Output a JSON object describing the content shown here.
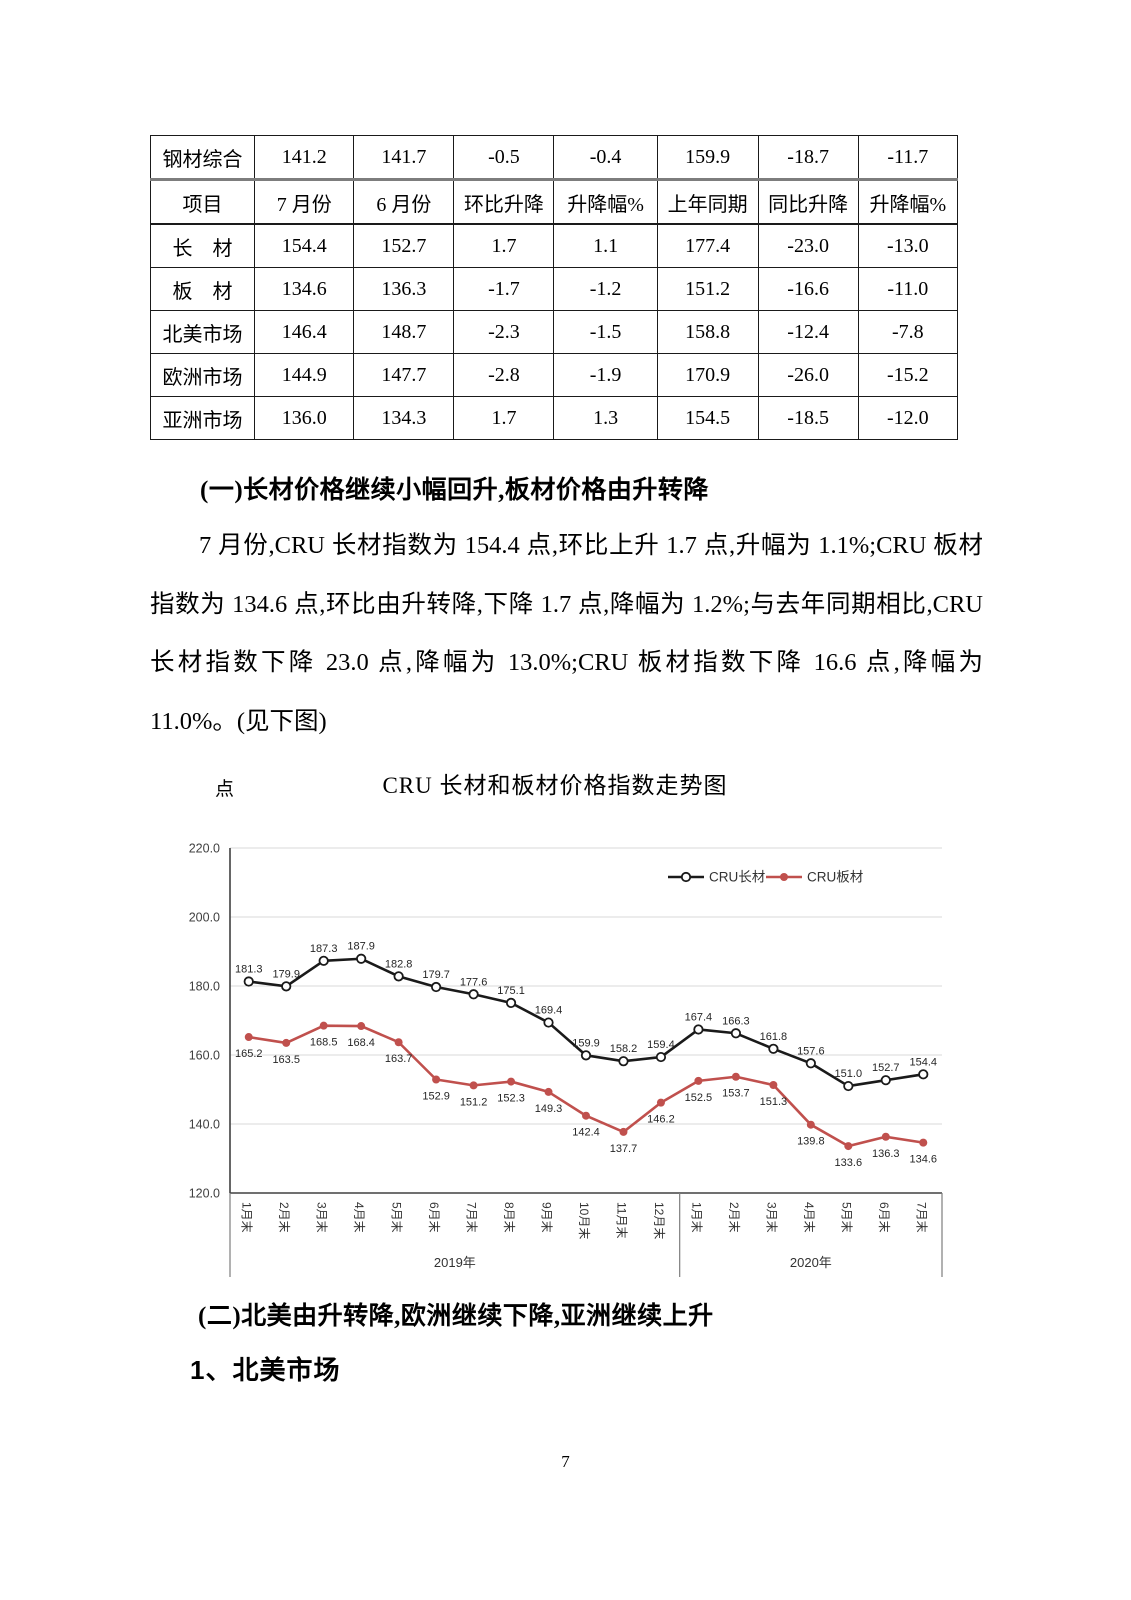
{
  "page": {
    "number": "7"
  },
  "table": {
    "pre_header_row": {
      "label": "钢材综合",
      "values": [
        "141.2",
        "141.7",
        "-0.5",
        "-0.4",
        "159.9",
        "-18.7",
        "-11.7"
      ]
    },
    "header": [
      "项目",
      "7 月份",
      "6 月份",
      "环比升降",
      "升降幅%",
      "上年同期",
      "同比升降",
      "升降幅%"
    ],
    "rows": [
      {
        "label": "长　材",
        "values": [
          "154.4",
          "152.7",
          "1.7",
          "1.1",
          "177.4",
          "-23.0",
          "-13.0"
        ]
      },
      {
        "label": "板　材",
        "values": [
          "134.6",
          "136.3",
          "-1.7",
          "-1.2",
          "151.2",
          "-16.6",
          "-11.0"
        ]
      },
      {
        "label": "北美市场",
        "values": [
          "146.4",
          "148.7",
          "-2.3",
          "-1.5",
          "158.8",
          "-12.4",
          "-7.8"
        ]
      },
      {
        "label": "欧洲市场",
        "values": [
          "144.9",
          "147.7",
          "-2.8",
          "-1.9",
          "170.9",
          "-26.0",
          "-15.2"
        ]
      },
      {
        "label": "亚洲市场",
        "values": [
          "136.0",
          "134.3",
          "1.7",
          "1.3",
          "154.5",
          "-18.5",
          "-12.0"
        ]
      }
    ]
  },
  "section1": {
    "heading": "(一)长材价格继续小幅回升,板材价格由升转降",
    "paragraph": "7 月份,CRU 长材指数为 154.4 点,环比上升 1.7 点,升幅为 1.1%;CRU 板材指数为 134.6 点,环比由升转降,下降 1.7 点,降幅为 1.2%;与去年同期相比,CRU 长材指数下降 23.0 点,降幅为 13.0%;CRU 板材指数下降 16.6 点,降幅为 11.0%。(见下图)"
  },
  "chart_data": {
    "type": "line",
    "title": "CRU 长材和板材价格指数走势图",
    "y_unit_label": "点",
    "categories": [
      "1月末",
      "2月末",
      "3月末",
      "4月末",
      "5月末",
      "6月末",
      "7月末",
      "8月末",
      "9月末",
      "10月末",
      "11月末",
      "12月末",
      "1月末",
      "2月末",
      "3月末",
      "4月末",
      "5月末",
      "6月末",
      "7月末"
    ],
    "x_groups": [
      {
        "label": "2019年",
        "count": 12
      },
      {
        "label": "2020年",
        "count": 7
      }
    ],
    "series": [
      {
        "name": "CRU长材",
        "color": "#1a1a1a",
        "marker": "open-circle",
        "values": [
          181.3,
          179.9,
          187.3,
          187.9,
          182.8,
          179.7,
          177.6,
          175.1,
          169.4,
          159.9,
          158.2,
          159.4,
          167.4,
          166.3,
          161.8,
          157.6,
          151.0,
          152.7,
          154.4
        ]
      },
      {
        "name": "CRU板材",
        "color": "#c0504d",
        "marker": "filled-circle",
        "values": [
          165.2,
          163.5,
          168.5,
          168.4,
          163.7,
          152.9,
          151.2,
          152.3,
          149.3,
          142.4,
          137.7,
          146.2,
          152.5,
          153.7,
          151.3,
          139.8,
          133.6,
          136.3,
          134.6
        ]
      }
    ],
    "ylim": [
      120,
      220
    ],
    "yticks": [
      "220.0",
      "200.0",
      "180.0",
      "160.0",
      "140.0",
      "120.0"
    ],
    "grid": true,
    "legend_position": "top-right-inside",
    "colors": {
      "gridline": "#d9d9d9",
      "axis": "#404040",
      "band_border": "#7d7d7d",
      "tick_text": "#404040",
      "label_text": "#262626"
    }
  },
  "section2": {
    "heading": "(二)北美由升转降,欧洲继续下降,亚洲继续上升",
    "subheading": "1、北美市场"
  }
}
